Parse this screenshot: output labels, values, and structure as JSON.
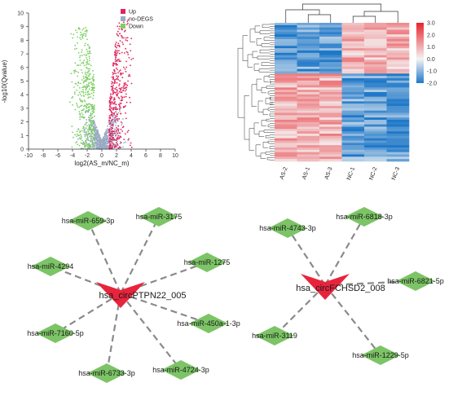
{
  "chart_data": [
    {
      "type": "scatter",
      "name": "volcano",
      "xlabel": "log2(AS_m/NC_m)",
      "ylabel": "-log10(Qvalue)",
      "xlim": [
        -10,
        10
      ],
      "ylim": [
        0,
        10
      ],
      "xticks": [
        -10,
        -8,
        -6,
        -4,
        -2,
        0,
        2,
        4,
        6,
        8,
        10
      ],
      "yticks": [
        0,
        1,
        2,
        3,
        4,
        5,
        6,
        7,
        8,
        9,
        10
      ],
      "legend": [
        {
          "label": "Up",
          "color": "#e0245e"
        },
        {
          "label": "no-DEGS",
          "color": "#9aaac4"
        },
        {
          "label": "Down",
          "color": "#7ccf63"
        }
      ],
      "legend_position": "top-right"
    },
    {
      "type": "heatmap",
      "name": "cluster-heatmap",
      "columns": [
        "AS-2",
        "AS-1",
        "AS-3",
        "NC-1",
        "NC-2",
        "NC-3"
      ],
      "colorbar_ticks": [
        "3.0",
        "2.0",
        "1.0",
        "0.0",
        "-1.0",
        "-2.0"
      ],
      "colorbar_range": [
        -2.0,
        3.0
      ],
      "colors": {
        "high": "#e8242c",
        "mid": "#f4f4f4",
        "low": "#1f78c8"
      }
    }
  ],
  "networks": [
    {
      "hub": "hsa_circPTPN22_005",
      "mirnas": [
        "hsa-miR-659-3p",
        "hsa-miR-3175",
        "hsa-miR-4294",
        "hsa-miR-1275",
        "hsa-miR-7160-5p",
        "hsa-miR-450a-1-3p",
        "hsa-miR-6733-3p",
        "hsa-miR-4724-3p"
      ]
    },
    {
      "hub": "hsa_circFCHSD2_008",
      "mirnas": [
        "hsa-miR-4743-3p",
        "hsa-miR-6818-3p",
        "hsa-miR-6821-5p",
        "hsa-miR-3119",
        "hsa-miR-1229-5p"
      ]
    }
  ],
  "colors": {
    "node_green": "#7cc466",
    "hub_red": "#e8243c",
    "edge": "#8a8a8a"
  }
}
